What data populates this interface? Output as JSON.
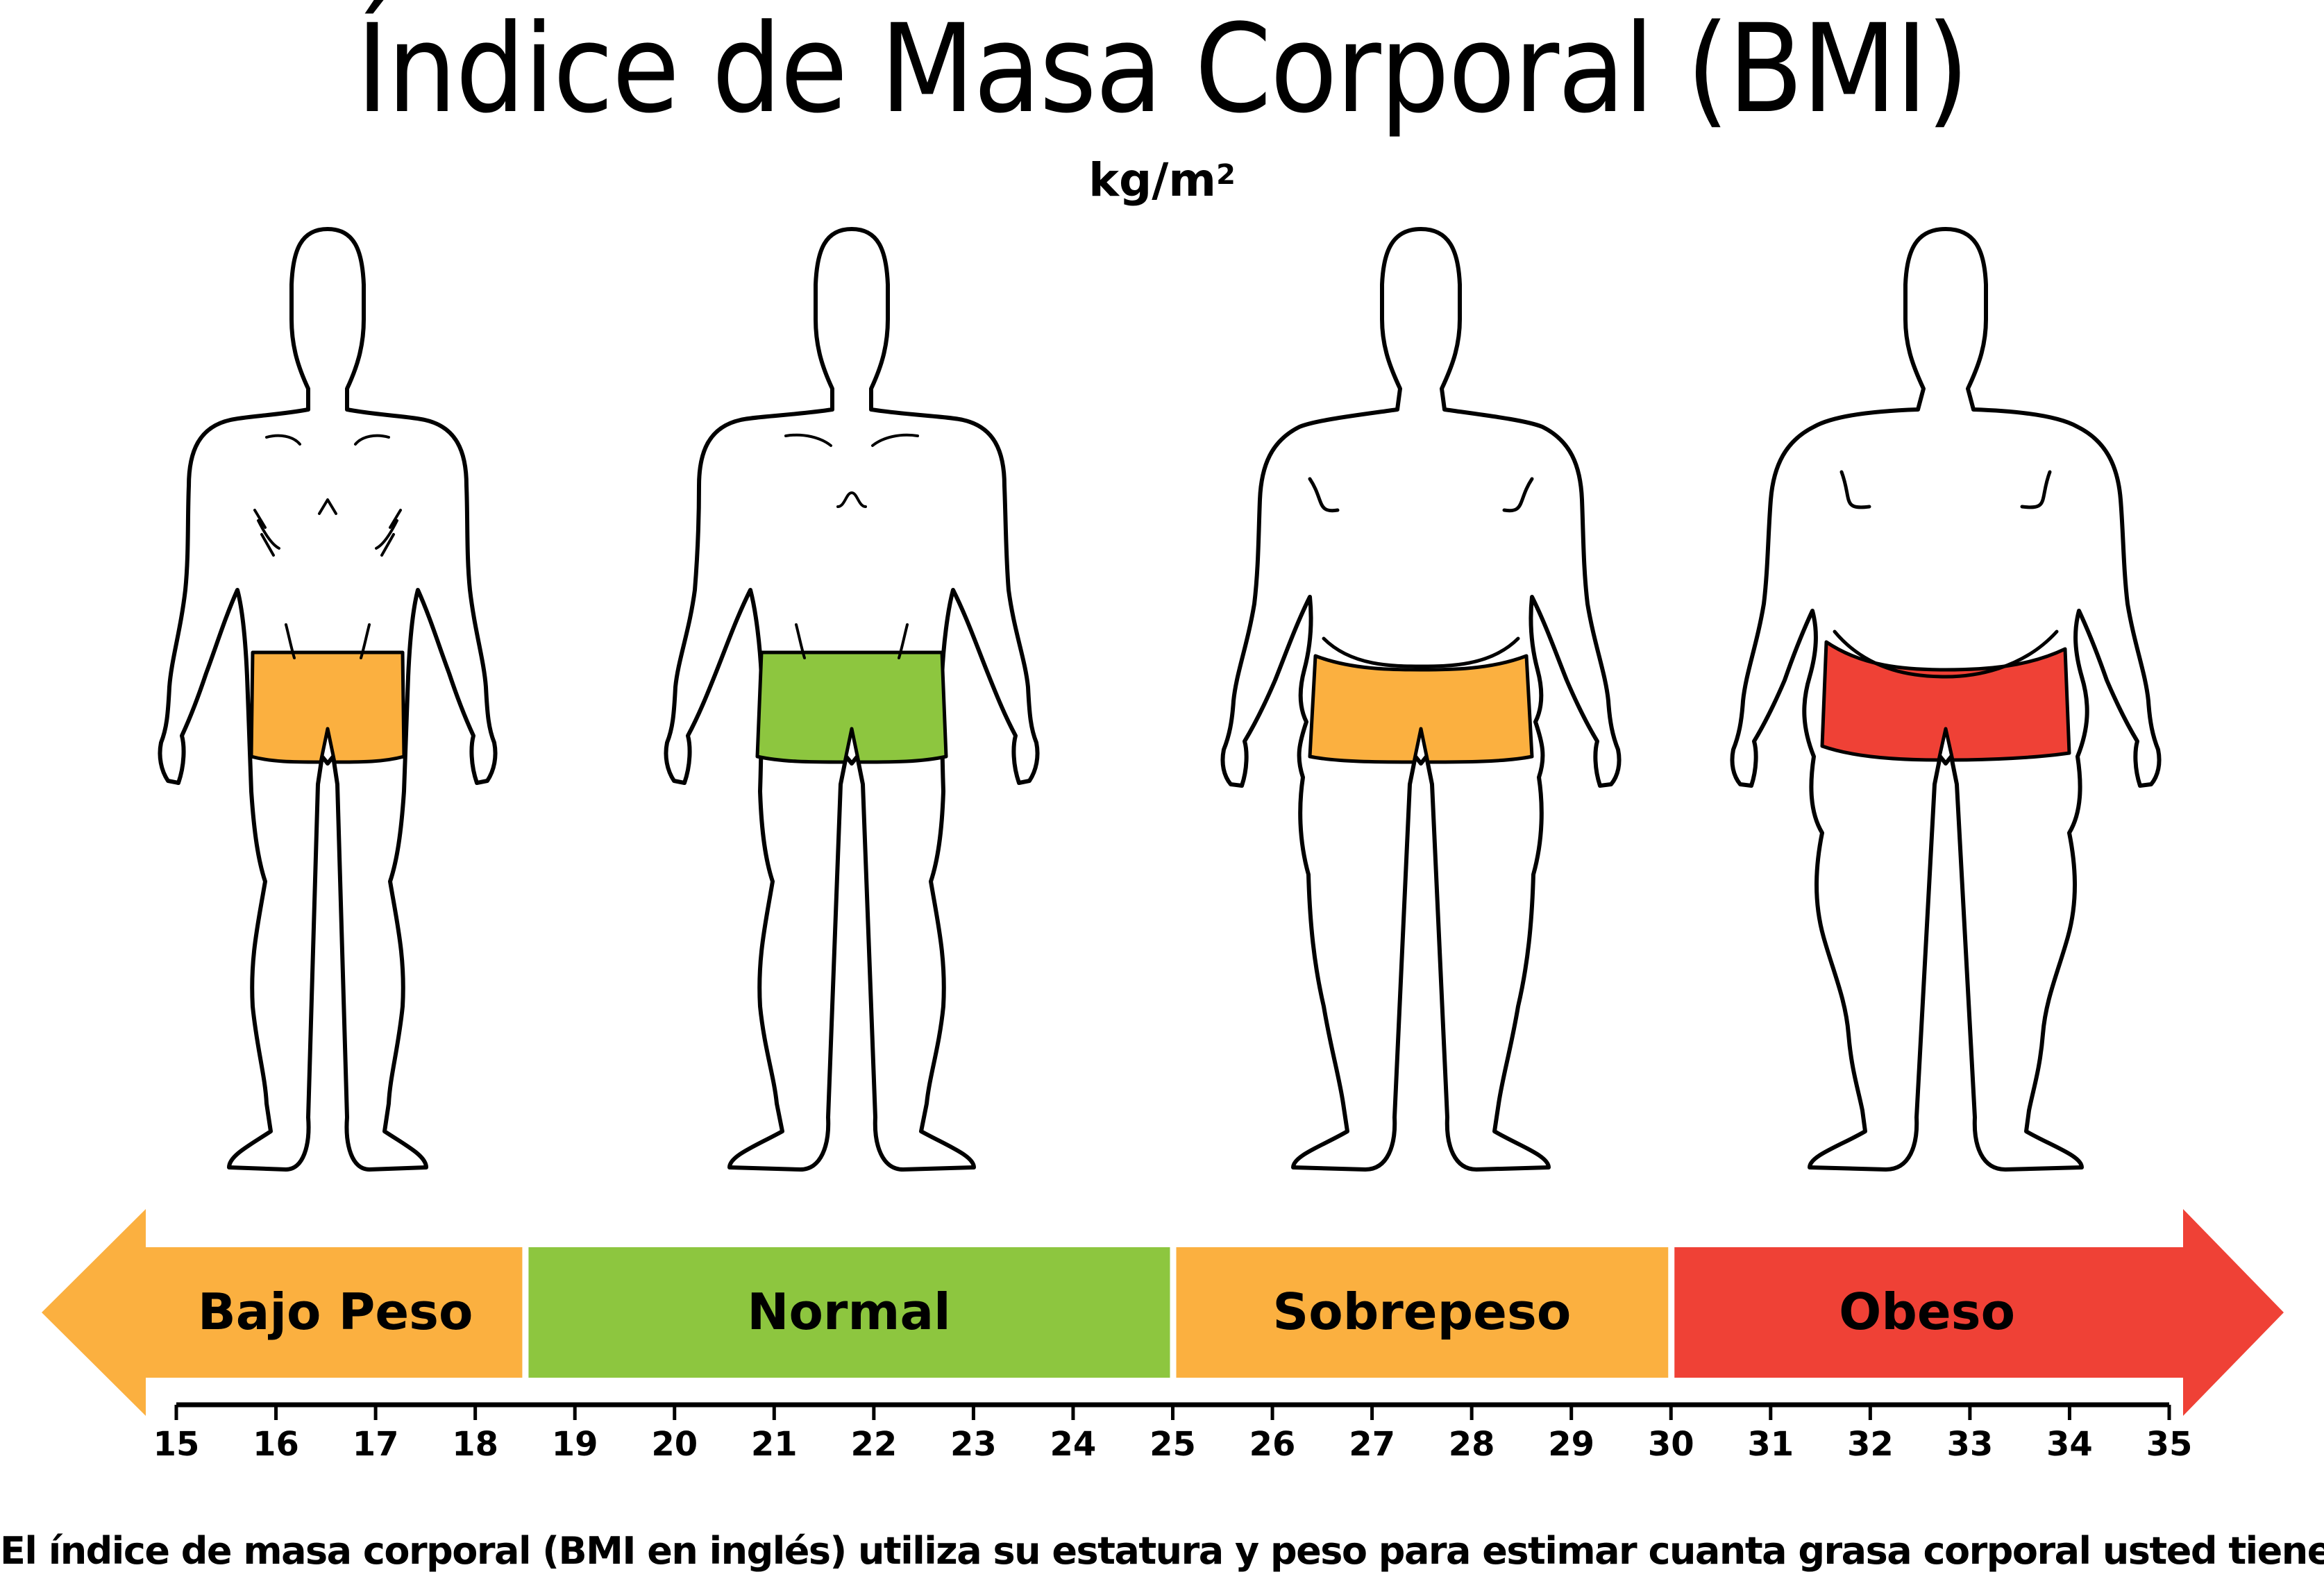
{
  "title": "Índice de Masa Corporal (BMI)",
  "unit": "kg/m",
  "unit_sup": "2",
  "colors": {
    "orange": "#fbb040",
    "green": "#8dc63f",
    "red": "#ef4136",
    "outline": "#000000"
  },
  "figures": [
    {
      "name": "bajo-peso",
      "shorts_color": "#fbb040"
    },
    {
      "name": "normal",
      "shorts_color": "#8dc63f"
    },
    {
      "name": "sobrepeso",
      "shorts_color": "#fbb040"
    },
    {
      "name": "obeso",
      "shorts_color": "#ef4136"
    }
  ],
  "scale": {
    "min": 15,
    "max": 35,
    "categories": [
      {
        "label": "Bajo Peso",
        "from": 15,
        "to": 18.5,
        "color": "#fbb040"
      },
      {
        "label": "Normal",
        "from": 18.5,
        "to": 25,
        "color": "#8dc63f"
      },
      {
        "label": "Sobrepeso",
        "from": 25,
        "to": 30,
        "color": "#fbb040"
      },
      {
        "label": "Obeso",
        "from": 30,
        "to": 35,
        "color": "#ef4136"
      }
    ],
    "ticks": [
      "15",
      "16",
      "17",
      "18",
      "19",
      "20",
      "21",
      "22",
      "23",
      "24",
      "25",
      "26",
      "27",
      "28",
      "29",
      "30",
      "31",
      "32",
      "33",
      "34",
      "35"
    ]
  },
  "footnote": "El índice de masa corporal (BMI en inglés) utiliza su estatura y peso para estimar cuanta grasa corporal usted tiene."
}
